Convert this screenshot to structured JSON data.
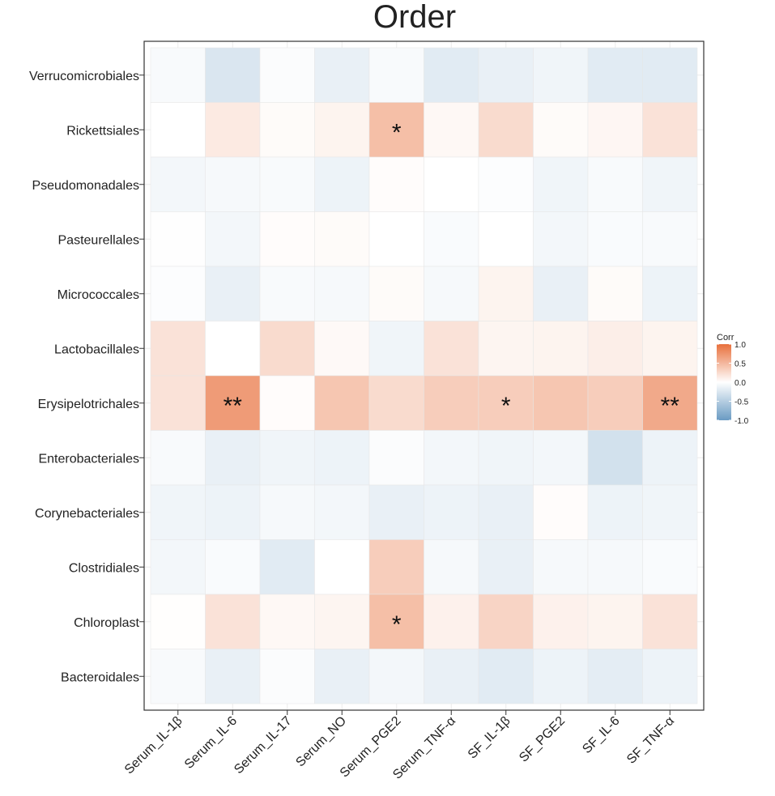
{
  "chart_data": {
    "type": "heatmap",
    "title": "Order",
    "xlabel": "",
    "ylabel": "",
    "columns": [
      "Serum_IL-1β",
      "Serum_IL-6",
      "Serum_IL-17",
      "Serum_NO",
      "Serum_PGE2",
      "Serum_TNF-α",
      "SF_IL-1β",
      "SF_PGE2",
      "SF_IL-6",
      "SF_TNF-α"
    ],
    "rows": [
      "Verrucomicrobiales",
      "Rickettsiales",
      "Pseudomonadales",
      "Pasteurellales",
      "Micrococcales",
      "Lactobacillales",
      "Erysipelotrichales",
      "Enterobacteriales",
      "Corynebacteriales",
      "Clostridiales",
      "Chloroplast",
      "Bacteroidales"
    ],
    "values": [
      [
        -0.05,
        -0.25,
        -0.03,
        -0.15,
        -0.05,
        -0.2,
        -0.15,
        -0.1,
        -0.2,
        -0.2
      ],
      [
        0.0,
        0.15,
        0.03,
        0.08,
        0.45,
        0.05,
        0.25,
        0.03,
        0.06,
        0.2
      ],
      [
        -0.08,
        -0.06,
        -0.05,
        -0.12,
        0.02,
        0.0,
        -0.02,
        -0.1,
        -0.05,
        -0.1
      ],
      [
        -0.01,
        -0.08,
        0.02,
        0.03,
        0.0,
        -0.04,
        0.0,
        -0.08,
        -0.04,
        -0.05
      ],
      [
        -0.02,
        -0.15,
        -0.05,
        -0.06,
        0.03,
        -0.06,
        0.08,
        -0.15,
        0.03,
        -0.12
      ],
      [
        0.2,
        0.0,
        0.25,
        0.04,
        -0.1,
        0.2,
        0.07,
        0.08,
        0.12,
        0.08
      ],
      [
        0.2,
        0.7,
        0.02,
        0.4,
        0.25,
        0.35,
        0.35,
        0.4,
        0.35,
        0.6
      ],
      [
        -0.05,
        -0.15,
        -0.1,
        -0.12,
        -0.03,
        -0.08,
        -0.1,
        -0.08,
        -0.3,
        -0.12
      ],
      [
        -0.1,
        -0.12,
        -0.06,
        -0.08,
        -0.15,
        -0.12,
        -0.15,
        0.02,
        -0.12,
        -0.1
      ],
      [
        -0.08,
        -0.04,
        -0.2,
        0.0,
        0.35,
        -0.06,
        -0.15,
        -0.06,
        -0.06,
        -0.04
      ],
      [
        0.01,
        0.2,
        0.05,
        0.07,
        0.45,
        0.1,
        0.3,
        0.1,
        0.08,
        0.2
      ],
      [
        -0.05,
        -0.15,
        -0.03,
        -0.15,
        -0.08,
        -0.15,
        -0.2,
        -0.12,
        -0.18,
        -0.12
      ]
    ],
    "annotations": [
      {
        "row": "Rickettsiales",
        "col": "Serum_PGE2",
        "text": "*"
      },
      {
        "row": "Erysipelotrichales",
        "col": "Serum_IL-6",
        "text": "**"
      },
      {
        "row": "Erysipelotrichales",
        "col": "SF_IL-1β",
        "text": "*"
      },
      {
        "row": "Erysipelotrichales",
        "col": "SF_TNF-α",
        "text": "**"
      },
      {
        "row": "Chloroplast",
        "col": "Serum_PGE2",
        "text": "*"
      }
    ],
    "legend": {
      "title": "Corr",
      "ticks": [
        1.0,
        0.5,
        0.0,
        -0.5,
        -1.0
      ],
      "tick_labels": [
        "1.0",
        "0.5",
        "0.0",
        "-0.5",
        "-1.0"
      ],
      "placement": "right"
    },
    "colors": {
      "high": "#e8703c",
      "mid": "#ffffff",
      "low": "#6a9bc3",
      "panel_border": "#333333",
      "grid": "#ebebeb",
      "annotation_text": "#111111"
    },
    "value_range": [
      -1.0,
      1.0
    ],
    "grid": true
  }
}
